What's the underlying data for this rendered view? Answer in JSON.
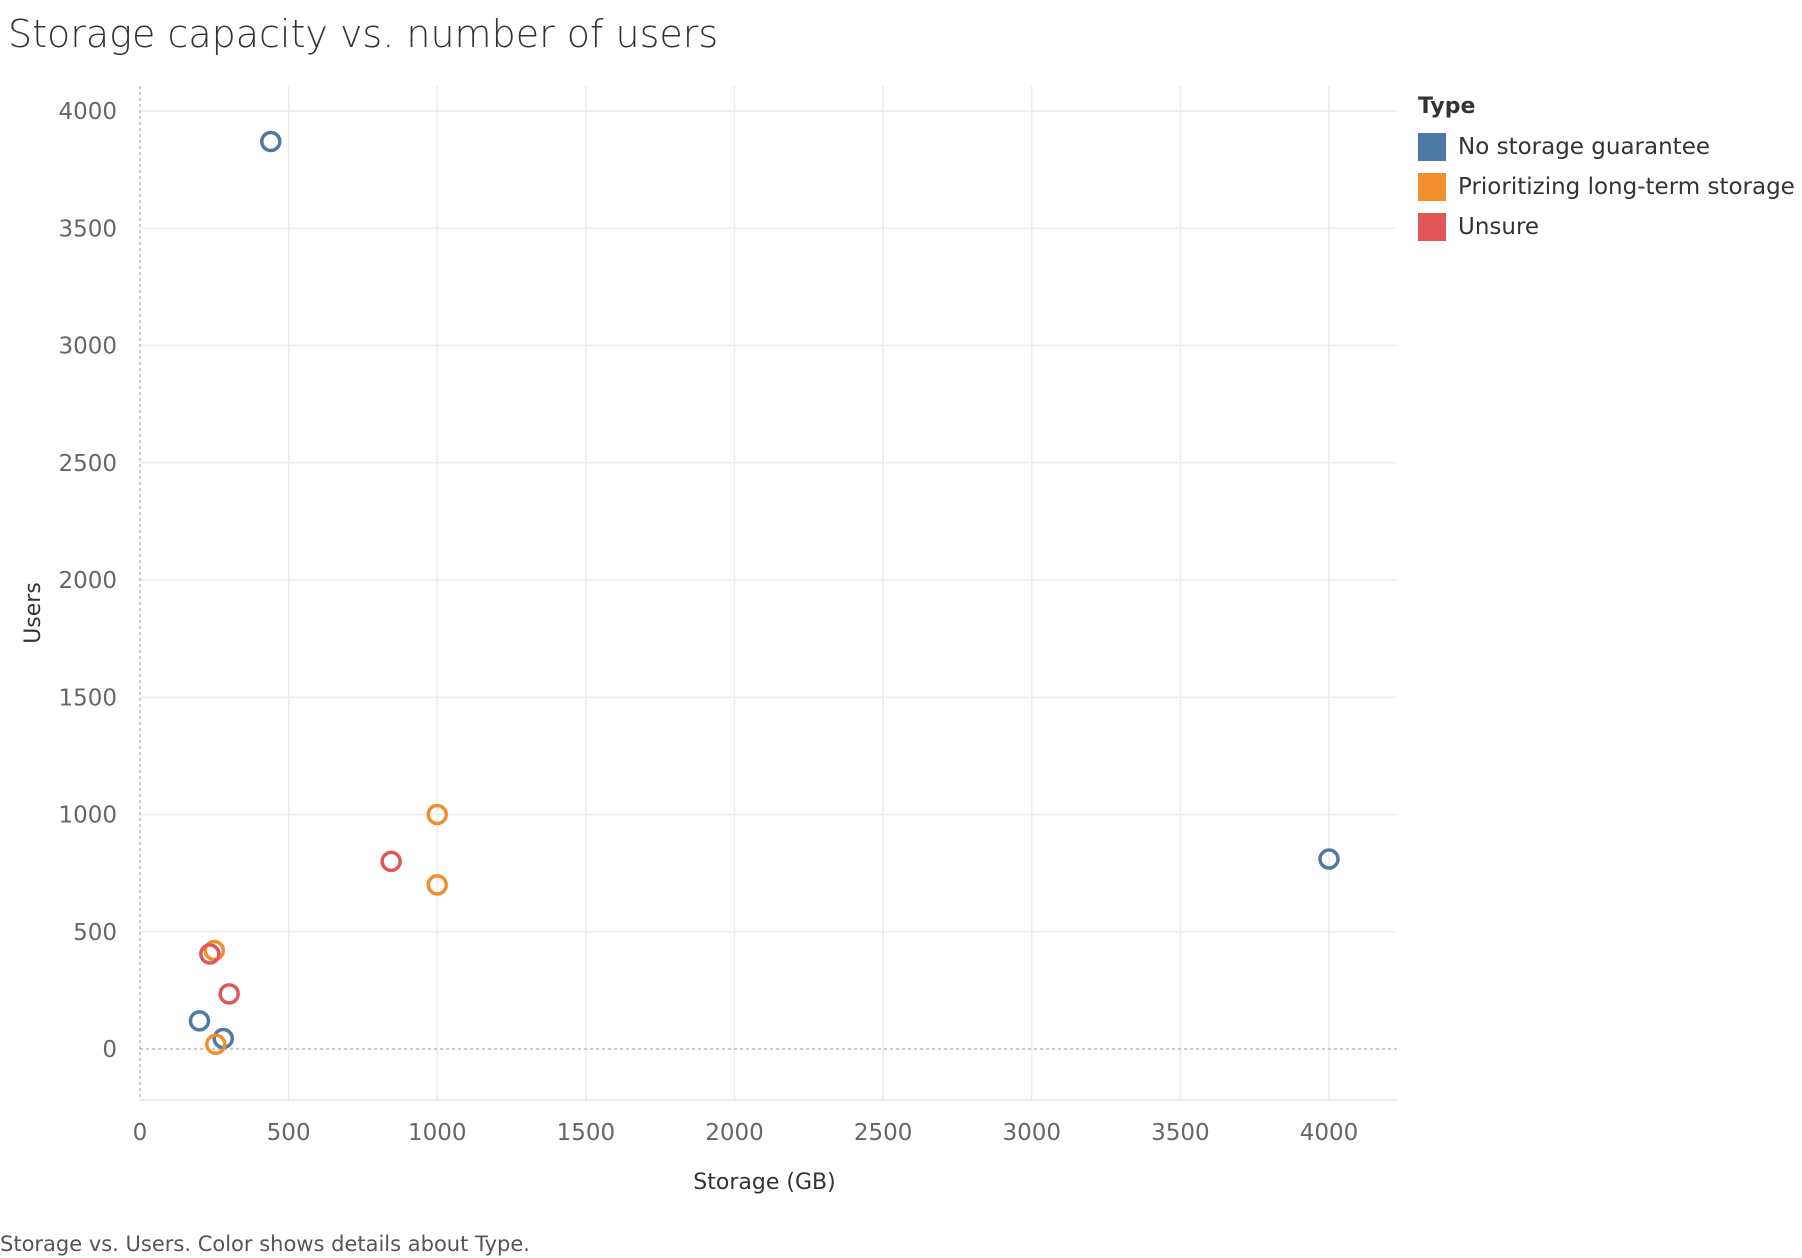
{
  "chart_data": {
    "type": "scatter",
    "title": "Storage capacity vs. number of users",
    "xlabel": "Storage (GB)",
    "ylabel": "Users",
    "xlim": [
      0,
      4200
    ],
    "ylim": [
      -220,
      4100
    ],
    "xticks": [
      0,
      500,
      1000,
      1500,
      2000,
      2500,
      3000,
      3500,
      4000
    ],
    "yticks": [
      0,
      500,
      1000,
      1500,
      2000,
      2500,
      3000,
      3500,
      4000
    ],
    "grid": true,
    "legend_position": "right",
    "legend_title": "Type",
    "marker": "hollow-circle",
    "series": [
      {
        "name": "No storage guarantee",
        "color": "#4e79a7",
        "points": [
          {
            "x": 440,
            "y": 3870
          },
          {
            "x": 4000,
            "y": 810
          },
          {
            "x": 200,
            "y": 120
          },
          {
            "x": 280,
            "y": 45
          }
        ]
      },
      {
        "name": "Prioritizing long-term storage",
        "color": "#f28e2b",
        "points": [
          {
            "x": 1000,
            "y": 1000
          },
          {
            "x": 1000,
            "y": 700
          },
          {
            "x": 250,
            "y": 420
          },
          {
            "x": 255,
            "y": 20
          }
        ]
      },
      {
        "name": "Unsure",
        "color": "#e15759",
        "points": [
          {
            "x": 845,
            "y": 800
          },
          {
            "x": 235,
            "y": 405
          },
          {
            "x": 300,
            "y": 235
          }
        ]
      }
    ]
  },
  "footer_text": "Storage vs. Users.  Color shows details about Type."
}
